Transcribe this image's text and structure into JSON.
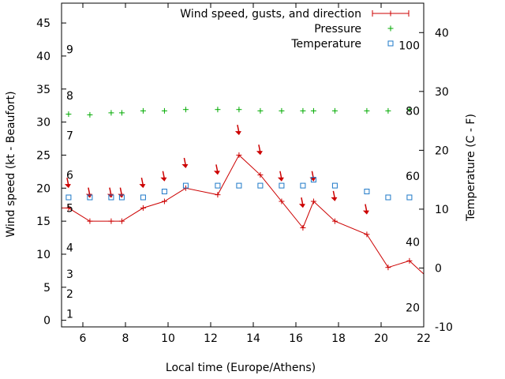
{
  "chart_data": {
    "type": "line",
    "xlabel": "Local time (Europe/Athens)",
    "ylabel": "Wind speed (kt - Beaufort)",
    "y2label": "Temperature (C - F)",
    "xlim": [
      5,
      22
    ],
    "ylim": [
      -1,
      48
    ],
    "y2lim": [
      -10,
      45
    ],
    "xticks": [
      "6",
      "8",
      "10",
      "12",
      "14",
      "16",
      "18",
      "20",
      "22"
    ],
    "yticks": [
      "0",
      "5",
      "10",
      "15",
      "20",
      "25",
      "30",
      "35",
      "40",
      "45"
    ],
    "y2ticks": [
      "-10",
      "0",
      "10",
      "20",
      "30",
      "40"
    ],
    "beaufort_labels": [
      {
        "text": "1",
        "y": 1
      },
      {
        "text": "2",
        "y": 4
      },
      {
        "text": "3",
        "y": 7
      },
      {
        "text": "4",
        "y": 11
      },
      {
        "text": "5",
        "y": 17
      },
      {
        "text": "6",
        "y": 22
      },
      {
        "text": "7",
        "y": 28
      },
      {
        "text": "8",
        "y": 34
      },
      {
        "text": "9",
        "y": 41
      }
    ],
    "fahrenheit_labels": [
      {
        "text": "20",
        "y2": -6.7
      },
      {
        "text": "40",
        "y2": 4.4
      },
      {
        "text": "60",
        "y2": 15.6
      },
      {
        "text": "80",
        "y2": 26.7
      },
      {
        "text": "100",
        "y2": 37.8
      }
    ],
    "legend": {
      "position": "top-right",
      "entries": [
        "Wind speed, gusts, and direction",
        "Pressure",
        "Temperature"
      ]
    },
    "series": [
      {
        "name": "Wind speed, gusts, and direction",
        "color": "#cc0000",
        "axis": "y",
        "x": [
          5.0,
          5.33,
          6.33,
          7.33,
          7.83,
          8.83,
          9.83,
          10.83,
          12.33,
          13.33,
          14.33,
          15.33,
          16.33,
          16.83,
          17.83,
          19.33,
          20.33,
          21.33,
          22.0
        ],
        "y": [
          17,
          17,
          15,
          15,
          15,
          17,
          18,
          20,
          19,
          25,
          22,
          18,
          14,
          18,
          15,
          13,
          8,
          9,
          7
        ]
      },
      {
        "name": "Pressure",
        "color": "#00aa00",
        "axis": "y",
        "x": [
          5.33,
          6.33,
          7.33,
          7.83,
          8.83,
          9.83,
          10.83,
          12.33,
          13.33,
          14.33,
          15.33,
          16.33,
          16.83,
          17.83,
          19.33,
          20.33,
          21.33
        ],
        "y": [
          31.2,
          31.1,
          31.4,
          31.4,
          31.7,
          31.7,
          31.9,
          31.9,
          31.9,
          31.7,
          31.7,
          31.7,
          31.7,
          31.7,
          31.7,
          31.7,
          31.9
        ]
      },
      {
        "name": "Temperature",
        "color": "#1e78c8",
        "axis": "y2",
        "x": [
          5.33,
          6.33,
          7.33,
          7.83,
          8.83,
          9.83,
          10.83,
          12.33,
          13.33,
          14.33,
          15.33,
          16.33,
          16.83,
          17.83,
          19.33,
          20.33,
          21.33
        ],
        "y": [
          12,
          12,
          12,
          12,
          12,
          13,
          14,
          14,
          14,
          14,
          14,
          14,
          15,
          14,
          13,
          12,
          12
        ]
      }
    ],
    "gust_arrows": [
      {
        "x": 5.33,
        "y": 20.5
      },
      {
        "x": 6.33,
        "y": 19.0
      },
      {
        "x": 7.33,
        "y": 19.0
      },
      {
        "x": 7.83,
        "y": 19.0
      },
      {
        "x": 8.83,
        "y": 20.5
      },
      {
        "x": 9.83,
        "y": 21.5
      },
      {
        "x": 10.83,
        "y": 23.5
      },
      {
        "x": 12.33,
        "y": 22.5
      },
      {
        "x": 13.33,
        "y": 28.5
      },
      {
        "x": 14.33,
        "y": 25.5
      },
      {
        "x": 15.33,
        "y": 21.5
      },
      {
        "x": 16.33,
        "y": 17.5
      },
      {
        "x": 16.83,
        "y": 21.5
      },
      {
        "x": 17.83,
        "y": 18.5
      },
      {
        "x": 19.33,
        "y": 16.5
      }
    ]
  }
}
